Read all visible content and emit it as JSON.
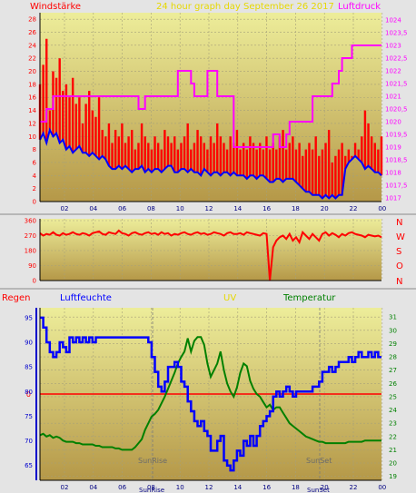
{
  "chart_data": [
    {
      "type": "line",
      "title": "24 hour graph day   September 26 2017",
      "left_label": "Windstärke",
      "right_label": "Luftdruck",
      "x_ticks": [
        "02",
        "04",
        "06",
        "08",
        "10",
        "12",
        "14",
        "16",
        "18",
        "20",
        "22",
        "00"
      ],
      "y_left_ticks": [
        "0",
        "2",
        "4",
        "6",
        "8",
        "10",
        "12",
        "14",
        "16",
        "18",
        "20",
        "22",
        "24",
        "26",
        "28"
      ],
      "y_left_range": [
        0,
        29
      ],
      "y_right_ticks": [
        "1017",
        "1017,5",
        "1018",
        "1018,5",
        "1019",
        "1019,5",
        "1020",
        "1020,5",
        "1021",
        "1021,5",
        "1022",
        "1022,5",
        "1023",
        "1023,5",
        "1024"
      ],
      "y_right_range": [
        1017,
        1024
      ],
      "series": [
        {
          "color": "#ff0000",
          "style": "gust bars",
          "values": [
            18,
            21,
            25,
            14,
            20,
            19,
            22,
            17,
            18,
            16,
            19,
            15,
            16,
            12,
            15,
            17,
            14,
            13,
            16,
            11,
            10,
            12,
            9,
            11,
            10,
            12,
            9,
            10,
            11,
            8,
            9,
            12,
            10,
            9,
            8,
            10,
            9,
            8,
            11,
            10,
            9,
            10,
            8,
            9,
            10,
            12,
            8,
            9,
            11,
            10,
            9,
            8,
            10,
            9,
            12,
            10,
            9,
            8,
            10,
            9,
            11,
            8,
            9,
            8,
            10,
            9,
            8,
            9,
            8,
            10,
            8,
            9,
            8,
            10,
            11,
            8,
            9,
            10,
            8,
            9,
            7,
            8,
            9,
            8,
            10,
            7,
            8,
            9,
            11,
            6,
            7,
            8,
            9,
            7,
            8,
            7,
            9,
            8,
            10,
            14,
            12,
            10,
            9,
            8,
            10
          ]
        },
        {
          "color": "#0000ff",
          "style": "line",
          "values": [
            9.5,
            10.5,
            9,
            11,
            10,
            10.5,
            9,
            9.5,
            8,
            8.5,
            7.5,
            8,
            8.5,
            7.5,
            7.5,
            7,
            7.5,
            7,
            6.5,
            7,
            6.5,
            5.5,
            5,
            5,
            5.5,
            5,
            5.5,
            5,
            4.5,
            5,
            5,
            5.5,
            4.5,
            5,
            4.5,
            5,
            5,
            4.5,
            5,
            5.5,
            5.5,
            4.5,
            4.5,
            5,
            5,
            4.5,
            5,
            4.5,
            4.5,
            4,
            5,
            4.5,
            4,
            4.5,
            4.5,
            4,
            4.5,
            4.5,
            4,
            4.5,
            4,
            4,
            4,
            3.5,
            4,
            4,
            3.5,
            4,
            4,
            3.5,
            3,
            3,
            3.5,
            3.5,
            3,
            3.5,
            3.5,
            3.5,
            3,
            2.5,
            2,
            1.5,
            1.5,
            1,
            1,
            1,
            0.5,
            1,
            0.5,
            1,
            0.5,
            1,
            1,
            5,
            6,
            6.5,
            7,
            6.5,
            6,
            5,
            5.5,
            5,
            4.5,
            4.5,
            4
          ]
        },
        {
          "color": "#ff00ff",
          "style": "step",
          "axis": "right",
          "values": [
            1020,
            1020,
            1020.5,
            1020.5,
            1021,
            1021,
            1021,
            1021,
            1021,
            1021,
            1021,
            1021,
            1021,
            1021,
            1021,
            1021,
            1021,
            1021,
            1021,
            1021,
            1021,
            1021,
            1021,
            1021,
            1021,
            1021,
            1021,
            1021,
            1021,
            1021,
            1020.5,
            1020.5,
            1021,
            1021,
            1021,
            1021,
            1021,
            1021,
            1021,
            1021,
            1021,
            1021,
            1022,
            1022,
            1022,
            1022,
            1021.5,
            1021,
            1021,
            1021,
            1021,
            1022,
            1022,
            1022,
            1021,
            1021,
            1021,
            1021,
            1021,
            1019,
            1019,
            1019,
            1019,
            1019,
            1019,
            1019,
            1019,
            1019,
            1019,
            1019,
            1019,
            1019.5,
            1019.5,
            1019,
            1019,
            1019.5,
            1020,
            1020,
            1020,
            1020,
            1020,
            1020,
            1020,
            1021,
            1021,
            1021,
            1021,
            1021,
            1021,
            1021.5,
            1021.5,
            1022,
            1022.5,
            1022.5,
            1022.5,
            1023,
            1023,
            1023,
            1023,
            1023,
            1023,
            1023,
            1023,
            1023,
            1023
          ]
        }
      ]
    },
    {
      "type": "line",
      "title": "",
      "y_left_ticks": [
        "0",
        "90",
        "180",
        "270",
        "360"
      ],
      "y_left_range": [
        0,
        360
      ],
      "y_right_ticks": [
        "N",
        "W",
        "S",
        "O",
        "N"
      ],
      "series": [
        {
          "color": "#ff0000",
          "style": "line",
          "values": [
            285,
            270,
            280,
            275,
            290,
            275,
            270,
            285,
            275,
            280,
            290,
            280,
            275,
            285,
            280,
            270,
            285,
            290,
            295,
            280,
            275,
            290,
            285,
            280,
            300,
            285,
            280,
            270,
            285,
            290,
            280,
            275,
            285,
            290,
            280,
            285,
            275,
            290,
            280,
            285,
            270,
            280,
            275,
            285,
            290,
            280,
            275,
            285,
            290,
            280,
            285,
            275,
            280,
            290,
            285,
            280,
            270,
            285,
            290,
            280,
            280,
            285,
            275,
            290,
            285,
            280,
            275,
            270,
            285,
            280,
            0,
            200,
            240,
            260,
            270,
            250,
            280,
            240,
            260,
            230,
            290,
            270,
            250,
            280,
            260,
            240,
            280,
            290,
            270,
            285,
            275,
            260,
            280,
            270,
            285,
            290,
            280,
            275,
            270,
            260,
            275,
            270,
            265,
            270,
            260
          ]
        }
      ]
    },
    {
      "type": "line",
      "title": "",
      "labels": {
        "regen": "Regen",
        "luftfeuchte": "Luftfeuchte",
        "uv": "UV",
        "temperatur": "Temperatur",
        "sunrise": "SunRise",
        "sunset": "SunSet"
      },
      "x_ticks": [
        "02",
        "04",
        "06",
        "08",
        "10",
        "12",
        "14",
        "16",
        "18",
        "20",
        "22",
        "00"
      ],
      "y_left_ticks": [
        "65",
        "70",
        "75",
        "80",
        "85",
        "90",
        "95"
      ],
      "y_left_range": [
        62,
        97
      ],
      "y_right_ticks": [
        "19",
        "20",
        "21",
        "22",
        "23",
        "24",
        "25",
        "26",
        "27",
        "28",
        "29",
        "30",
        "31"
      ],
      "y_right_range": [
        18.7,
        31.7
      ],
      "rain_marker": "0",
      "series": [
        {
          "name": "Luftfeuchte",
          "color": "#0000ff",
          "style": "step",
          "values": [
            95,
            93,
            90,
            88,
            87,
            88,
            90,
            89,
            88,
            91,
            90,
            91,
            90,
            91,
            90,
            91,
            90,
            91,
            91,
            91,
            91,
            91,
            91,
            91,
            91,
            91,
            91,
            91,
            91,
            91,
            91,
            91,
            91,
            90,
            87,
            84,
            81,
            80,
            82,
            85,
            85,
            86,
            85,
            82,
            81,
            78,
            76,
            74,
            73,
            74,
            72,
            71,
            68,
            68,
            70,
            71,
            66,
            65,
            64,
            66,
            68,
            67,
            70,
            69,
            71,
            69,
            71,
            73,
            74,
            75,
            76,
            79,
            80,
            79,
            80,
            81,
            80,
            79,
            80,
            80,
            80,
            80,
            80,
            81,
            81,
            82,
            84,
            84,
            85,
            84,
            85,
            86,
            86,
            86,
            87,
            86,
            87,
            88,
            87,
            87,
            88,
            87,
            88,
            87,
            87
          ]
        },
        {
          "name": "Temperatur",
          "color": "#008000",
          "style": "line",
          "axis": "right",
          "values": [
            22.1,
            22.2,
            22.0,
            22.1,
            21.9,
            22.0,
            21.9,
            21.7,
            21.6,
            21.6,
            21.6,
            21.5,
            21.5,
            21.4,
            21.4,
            21.4,
            21.4,
            21.3,
            21.3,
            21.2,
            21.2,
            21.2,
            21.2,
            21.1,
            21.1,
            21.0,
            21.0,
            21.0,
            21.0,
            21.2,
            21.5,
            21.8,
            22.5,
            23.0,
            23.5,
            23.7,
            24.0,
            24.5,
            25.0,
            25.6,
            26.2,
            26.8,
            27.5,
            28.0,
            28.4,
            29.4,
            28.4,
            29.2,
            29.5,
            29.5,
            28.9,
            27.5,
            26.5,
            27.0,
            27.5,
            28.4,
            27.0,
            26.0,
            25.4,
            25.0,
            25.7,
            26.8,
            27.5,
            27.3,
            26.2,
            25.6,
            25.2,
            25.0,
            24.6,
            24.2,
            24.4,
            24.0,
            24.2,
            24.2,
            23.8,
            23.4,
            23.0,
            22.8,
            22.6,
            22.4,
            22.2,
            22.0,
            21.9,
            21.8,
            21.7,
            21.6,
            21.6,
            21.5,
            21.5,
            21.5,
            21.5,
            21.5,
            21.5,
            21.5,
            21.6,
            21.6,
            21.6,
            21.6,
            21.6,
            21.7,
            21.7,
            21.7,
            21.7,
            21.7,
            21.7
          ]
        }
      ]
    }
  ]
}
